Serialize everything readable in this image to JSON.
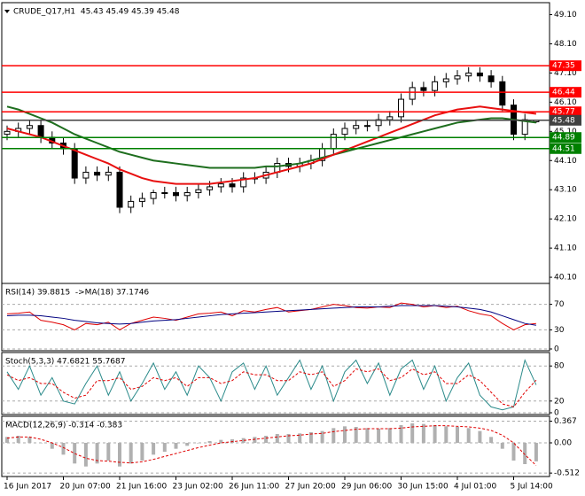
{
  "chart_data": [
    {
      "type": "candlestick",
      "title": "CRUDE_Q17,H1  45.43 45.49 45.39 45.48",
      "categories": [
        "16 Jun 2017",
        null,
        null,
        null,
        null,
        "20 Jun 07:00",
        null,
        null,
        null,
        null,
        "21 Jun 16:00",
        null,
        null,
        null,
        null,
        "23 Jun 02:00",
        null,
        null,
        null,
        null,
        "26 Jun 11:00",
        null,
        null,
        null,
        null,
        "27 Jun 20:00",
        null,
        null,
        null,
        null,
        "29 Jun 06:00",
        null,
        null,
        null,
        null,
        "30 Jun 15:00",
        null,
        null,
        null,
        null,
        "4 Jul 01:00",
        null,
        null,
        null,
        null,
        "5 Jul 14:00",
        null,
        null
      ],
      "open": [
        45.0,
        45.1,
        45.2,
        45.3,
        44.9,
        44.7,
        44.5,
        43.5,
        43.7,
        43.6,
        43.7,
        42.5,
        42.7,
        42.8,
        43.0,
        43.0,
        42.9,
        43.0,
        43.1,
        43.2,
        43.3,
        43.2,
        43.5,
        43.5,
        43.7,
        44.0,
        43.9,
        44.0,
        44.1,
        44.5,
        45.0,
        45.2,
        45.3,
        45.3,
        45.5,
        45.6,
        46.2,
        46.6,
        46.5,
        46.8,
        46.9,
        47.0,
        47.1,
        47.0,
        46.8,
        46.0,
        45.0,
        45.43
      ],
      "high": [
        45.3,
        45.4,
        45.5,
        45.5,
        45.1,
        44.9,
        44.7,
        43.9,
        43.9,
        43.9,
        43.9,
        42.9,
        43.0,
        43.1,
        43.2,
        43.2,
        43.2,
        43.3,
        43.4,
        43.5,
        43.5,
        43.7,
        43.7,
        43.9,
        44.2,
        44.2,
        44.2,
        44.3,
        44.7,
        45.2,
        45.4,
        45.5,
        45.5,
        45.7,
        45.8,
        46.4,
        46.8,
        46.8,
        47.0,
        47.1,
        47.2,
        47.3,
        47.3,
        47.2,
        47.0,
        46.2,
        45.7,
        45.49
      ],
      "low": [
        44.8,
        44.9,
        45.0,
        44.7,
        44.5,
        44.3,
        43.3,
        43.3,
        43.4,
        43.4,
        42.3,
        42.3,
        42.5,
        42.6,
        42.8,
        42.7,
        42.7,
        42.8,
        42.9,
        43.0,
        43.0,
        43.0,
        43.3,
        43.3,
        43.5,
        43.7,
        43.7,
        43.8,
        43.9,
        44.3,
        44.8,
        45.0,
        45.1,
        45.1,
        45.3,
        45.4,
        46.0,
        46.3,
        46.3,
        46.6,
        46.7,
        46.8,
        46.8,
        46.6,
        45.8,
        44.8,
        44.8,
        45.39
      ],
      "close": [
        45.1,
        45.2,
        45.3,
        44.9,
        44.7,
        44.5,
        43.5,
        43.7,
        43.6,
        43.7,
        42.5,
        42.7,
        42.8,
        43.0,
        43.0,
        42.9,
        43.0,
        43.1,
        43.2,
        43.3,
        43.2,
        43.5,
        43.5,
        43.7,
        44.0,
        43.9,
        44.0,
        44.1,
        44.5,
        45.0,
        45.2,
        45.3,
        45.3,
        45.5,
        45.6,
        46.2,
        46.6,
        46.5,
        46.8,
        46.9,
        47.0,
        47.1,
        47.0,
        46.8,
        46.0,
        45.0,
        45.5,
        45.48
      ],
      "series": [
        {
          "color": "#1e6e1e",
          "values": [
            45.95,
            45.85,
            45.7,
            45.55,
            45.4,
            45.2,
            45.0,
            44.85,
            44.7,
            44.55,
            44.4,
            44.3,
            44.2,
            44.1,
            44.05,
            44.0,
            43.95,
            43.9,
            43.85,
            43.85,
            43.85,
            43.85,
            43.85,
            43.9,
            43.9,
            43.95,
            44.0,
            44.1,
            44.2,
            44.3,
            44.4,
            44.5,
            44.6,
            44.7,
            44.8,
            44.9,
            45.0,
            45.1,
            45.2,
            45.3,
            45.4,
            45.45,
            45.5,
            45.55,
            45.55,
            45.5,
            45.45,
            45.4
          ]
        },
        {
          "color": "#e81010",
          "values": [
            45.2,
            45.1,
            45.0,
            44.9,
            44.75,
            44.6,
            44.45,
            44.3,
            44.15,
            44.0,
            43.8,
            43.65,
            43.5,
            43.4,
            43.35,
            43.3,
            43.3,
            43.3,
            43.3,
            43.35,
            43.4,
            43.45,
            43.5,
            43.6,
            43.7,
            43.8,
            43.9,
            44.0,
            44.15,
            44.3,
            44.45,
            44.6,
            44.75,
            44.9,
            45.05,
            45.2,
            45.35,
            45.5,
            45.65,
            45.75,
            45.85,
            45.9,
            45.95,
            45.9,
            45.85,
            45.8,
            45.75,
            45.7
          ]
        }
      ],
      "levels": [
        {
          "value": 47.35,
          "color": "#ff0000"
        },
        {
          "value": 46.44,
          "color": "#ff0000"
        },
        {
          "value": 45.77,
          "color": "#ff0000"
        },
        {
          "value": 45.48,
          "color": "#404040"
        },
        {
          "value": 44.89,
          "color": "#008000"
        },
        {
          "value": 44.51,
          "color": "#008000"
        }
      ],
      "ylim": [
        39.95,
        49.45
      ],
      "yticks": [
        {
          "value": 49.1,
          "label": "49.10"
        },
        {
          "value": 48.1,
          "label": "48.10"
        },
        {
          "value": 47.1,
          "label": "47.10"
        },
        {
          "value": 46.1,
          "label": "46.10"
        },
        {
          "value": 45.1,
          "label": "45.10"
        },
        {
          "value": 44.1,
          "label": "44.10"
        },
        {
          "value": 43.1,
          "label": "43.10"
        },
        {
          "value": 42.1,
          "label": "42.10"
        },
        {
          "value": 41.1,
          "label": "41.10"
        },
        {
          "value": 40.1,
          "label": "40.10"
        }
      ],
      "grid": false
    },
    {
      "type": "line",
      "title": "RSI(14) 39.8815  ->MA(18) 37.1746",
      "series": [
        {
          "color": "#e00000",
          "values": [
            55,
            56,
            58,
            45,
            42,
            38,
            30,
            40,
            38,
            42,
            30,
            40,
            45,
            50,
            48,
            45,
            50,
            55,
            56,
            58,
            52,
            60,
            58,
            62,
            65,
            58,
            60,
            62,
            66,
            70,
            68,
            65,
            64,
            66,
            65,
            72,
            70,
            66,
            68,
            65,
            67,
            60,
            55,
            52,
            40,
            30,
            38,
            39.88
          ]
        },
        {
          "color": "#000080",
          "values": [
            52,
            53,
            53,
            52,
            50,
            48,
            45,
            43,
            41,
            40,
            39,
            40,
            42,
            44,
            45,
            46,
            48,
            50,
            52,
            54,
            55,
            56,
            57,
            58,
            59,
            60,
            61,
            62,
            63,
            64,
            65,
            66,
            66,
            66,
            67,
            68,
            68,
            68,
            68,
            67,
            66,
            64,
            62,
            58,
            52,
            46,
            40,
            37.17
          ]
        }
      ],
      "ylim": [
        0,
        100
      ],
      "yticks": [
        0,
        30,
        70
      ],
      "grid": true
    },
    {
      "type": "line",
      "title": "Stoch(5,3,3) 47.6821 55.7687",
      "series": [
        {
          "color": "#2a8a8a",
          "values": [
            70,
            40,
            80,
            30,
            60,
            20,
            15,
            50,
            80,
            30,
            70,
            20,
            50,
            85,
            40,
            70,
            30,
            80,
            60,
            20,
            70,
            85,
            40,
            80,
            30,
            60,
            90,
            40,
            80,
            20,
            70,
            90,
            50,
            85,
            30,
            75,
            90,
            40,
            80,
            20,
            60,
            85,
            30,
            10,
            5,
            10,
            90,
            47.68
          ]
        },
        {
          "color": "#e00000",
          "dashed": true,
          "values": [
            65,
            55,
            60,
            50,
            50,
            35,
            25,
            30,
            55,
            55,
            60,
            40,
            45,
            60,
            55,
            60,
            45,
            60,
            60,
            50,
            55,
            70,
            65,
            65,
            55,
            55,
            70,
            65,
            70,
            45,
            55,
            75,
            70,
            75,
            55,
            60,
            75,
            65,
            70,
            50,
            50,
            65,
            55,
            35,
            15,
            10,
            35,
            55.77
          ]
        }
      ],
      "ylim": [
        0,
        100
      ],
      "yticks": [
        0,
        20,
        80
      ],
      "grid": true
    },
    {
      "type": "bar",
      "title": "MACD(12,26,9) -0.314 -0.383",
      "color": "#b0b0b0",
      "values": [
        0.1,
        0.12,
        0.1,
        0.0,
        -0.1,
        -0.2,
        -0.35,
        -0.4,
        -0.35,
        -0.3,
        -0.4,
        -0.35,
        -0.3,
        -0.2,
        -0.15,
        -0.1,
        -0.05,
        0.0,
        0.03,
        0.05,
        0.06,
        0.08,
        0.1,
        0.12,
        0.15,
        0.15,
        0.16,
        0.18,
        0.2,
        0.25,
        0.28,
        0.27,
        0.25,
        0.24,
        0.25,
        0.3,
        0.33,
        0.32,
        0.3,
        0.28,
        0.27,
        0.25,
        0.2,
        0.1,
        -0.1,
        -0.3,
        -0.36,
        -0.314
      ],
      "series": [
        {
          "color": "#e00000",
          "dashed": true,
          "values": [
            0.08,
            0.1,
            0.1,
            0.06,
            0.0,
            -0.08,
            -0.18,
            -0.26,
            -0.3,
            -0.31,
            -0.33,
            -0.34,
            -0.32,
            -0.28,
            -0.23,
            -0.18,
            -0.13,
            -0.08,
            -0.04,
            0.0,
            0.02,
            0.04,
            0.06,
            0.08,
            0.1,
            0.12,
            0.13,
            0.15,
            0.16,
            0.19,
            0.21,
            0.23,
            0.24,
            0.24,
            0.24,
            0.25,
            0.27,
            0.28,
            0.29,
            0.29,
            0.28,
            0.27,
            0.25,
            0.21,
            0.13,
            0.0,
            -0.2,
            -0.383
          ]
        }
      ],
      "ylim": [
        -0.54,
        0.42
      ],
      "yticks": [
        0.367,
        {
          "value": 0,
          "label": "0.00"
        },
        -0.512
      ],
      "grid": true
    }
  ]
}
